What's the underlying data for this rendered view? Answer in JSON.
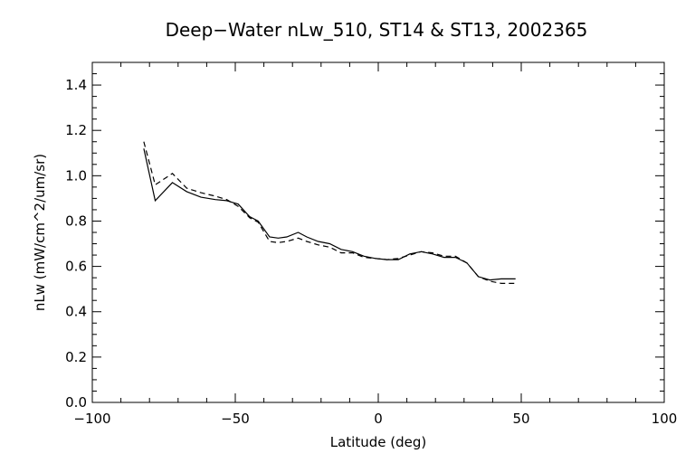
{
  "chart_data": {
    "type": "line",
    "title": "Deep−Water nLw_510, ST14 & ST13, 2002365",
    "xlabel": "Latitude (deg)",
    "ylabel": "nLw (mW/cm^2/um/sr)",
    "xlim": [
      -100,
      100
    ],
    "ylim": [
      0.0,
      1.5
    ],
    "xticks": [
      -100,
      -50,
      0,
      50,
      100
    ],
    "xtick_labels": [
      "−100",
      "−50",
      "0",
      "50",
      "100"
    ],
    "yticks": [
      0.0,
      0.2,
      0.4,
      0.6,
      0.8,
      1.0,
      1.2,
      1.4
    ],
    "ytick_labels": [
      "0.0",
      "0.2",
      "0.4",
      "0.6",
      "0.8",
      "1.0",
      "1.2",
      "1.4"
    ],
    "grid": false,
    "series": [
      {
        "style": "solid",
        "x": [
          -82,
          -78,
          -72,
          -67,
          -62,
          -57,
          -53,
          -49,
          -45,
          -42,
          -38,
          -35,
          -32,
          -28,
          -25,
          -21,
          -17,
          -13,
          -9,
          -5,
          -1,
          3,
          7,
          11,
          15,
          19,
          23,
          27,
          31,
          35,
          39,
          43,
          48
        ],
        "y": [
          1.12,
          0.89,
          0.97,
          0.93,
          0.905,
          0.895,
          0.89,
          0.875,
          0.82,
          0.8,
          0.73,
          0.725,
          0.73,
          0.75,
          0.73,
          0.71,
          0.7,
          0.675,
          0.665,
          0.645,
          0.635,
          0.63,
          0.63,
          0.655,
          0.665,
          0.655,
          0.64,
          0.64,
          0.615,
          0.555,
          0.54,
          0.545,
          0.545
        ]
      },
      {
        "style": "dashed",
        "x": [
          -82,
          -78,
          -72,
          -67,
          -62,
          -57,
          -53,
          -49,
          -45,
          -42,
          -38,
          -35,
          -32,
          -28,
          -25,
          -21,
          -17,
          -13,
          -9,
          -5,
          -1,
          3,
          7,
          11,
          15,
          19,
          23,
          27,
          31,
          35,
          39,
          43,
          48
        ],
        "y": [
          1.15,
          0.96,
          1.01,
          0.945,
          0.925,
          0.91,
          0.895,
          0.865,
          0.815,
          0.795,
          0.71,
          0.705,
          0.71,
          0.725,
          0.71,
          0.695,
          0.685,
          0.66,
          0.66,
          0.64,
          0.635,
          0.63,
          0.635,
          0.65,
          0.665,
          0.66,
          0.645,
          0.645,
          0.615,
          0.555,
          0.535,
          0.525,
          0.525
        ]
      }
    ]
  }
}
